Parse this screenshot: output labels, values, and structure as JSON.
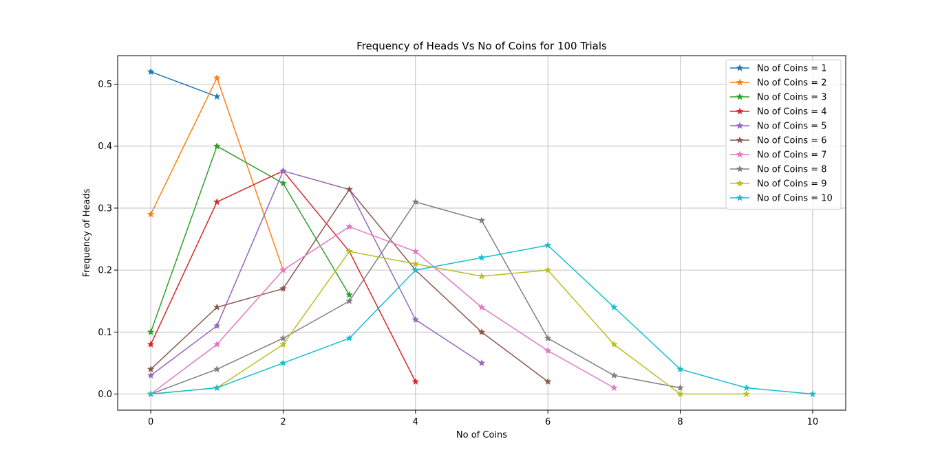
{
  "chart_data": {
    "type": "line",
    "title": "Frequency of Heads Vs No of Coins  for 100 Trials",
    "xlabel": "No of Coins",
    "ylabel": "Frequency of Heads",
    "xlim": [
      -0.5,
      10.5
    ],
    "ylim": [
      -0.026,
      0.546
    ],
    "xticks": [
      0,
      2,
      4,
      6,
      8,
      10
    ],
    "yticks": [
      0.0,
      0.1,
      0.2,
      0.3,
      0.4,
      0.5
    ],
    "xtick_labels": [
      "0",
      "2",
      "4",
      "6",
      "8",
      "10"
    ],
    "ytick_labels": [
      "0.0",
      "0.1",
      "0.2",
      "0.3",
      "0.4",
      "0.5"
    ],
    "grid": true,
    "legend_position": "top-right",
    "marker": "star",
    "series": [
      {
        "name": "No of Coins = 1",
        "color": "#1f77b4",
        "x": [
          0,
          1
        ],
        "values": [
          0.52,
          0.48
        ]
      },
      {
        "name": "No of Coins = 2",
        "color": "#ff7f0e",
        "x": [
          0,
          1,
          2
        ],
        "values": [
          0.29,
          0.51,
          0.2
        ]
      },
      {
        "name": "No of Coins = 3",
        "color": "#2ca02c",
        "x": [
          0,
          1,
          2,
          3
        ],
        "values": [
          0.1,
          0.4,
          0.34,
          0.16
        ]
      },
      {
        "name": "No of Coins = 4",
        "color": "#d62728",
        "x": [
          0,
          1,
          2,
          3,
          4
        ],
        "values": [
          0.08,
          0.31,
          0.36,
          0.23,
          0.02
        ]
      },
      {
        "name": "No of Coins = 5",
        "color": "#9467bd",
        "x": [
          0,
          1,
          2,
          3,
          4,
          5
        ],
        "values": [
          0.03,
          0.11,
          0.36,
          0.33,
          0.12,
          0.05
        ]
      },
      {
        "name": "No of Coins = 6",
        "color": "#8c564b",
        "x": [
          0,
          1,
          2,
          3,
          4,
          5,
          6
        ],
        "values": [
          0.04,
          0.14,
          0.17,
          0.33,
          0.2,
          0.1,
          0.02
        ]
      },
      {
        "name": "No of Coins = 7",
        "color": "#e377c2",
        "x": [
          0,
          1,
          2,
          3,
          4,
          5,
          6,
          7
        ],
        "values": [
          0.0,
          0.08,
          0.2,
          0.27,
          0.23,
          0.14,
          0.07,
          0.01
        ]
      },
      {
        "name": "No of Coins = 8",
        "color": "#7f7f7f",
        "x": [
          0,
          1,
          2,
          3,
          4,
          5,
          6,
          7,
          8
        ],
        "values": [
          0.0,
          0.04,
          0.09,
          0.15,
          0.31,
          0.28,
          0.09,
          0.03,
          0.01
        ]
      },
      {
        "name": "No of Coins = 9",
        "color": "#bcbd22",
        "x": [
          0,
          1,
          2,
          3,
          4,
          5,
          6,
          7,
          8,
          9
        ],
        "values": [
          0.0,
          0.01,
          0.08,
          0.23,
          0.21,
          0.19,
          0.2,
          0.08,
          0.0,
          0.0
        ]
      },
      {
        "name": "No of Coins = 10",
        "color": "#17becf",
        "x": [
          0,
          1,
          2,
          3,
          4,
          5,
          6,
          7,
          8,
          9,
          10
        ],
        "values": [
          0.0,
          0.01,
          0.05,
          0.09,
          0.2,
          0.22,
          0.24,
          0.14,
          0.04,
          0.01,
          0.0
        ]
      }
    ]
  }
}
